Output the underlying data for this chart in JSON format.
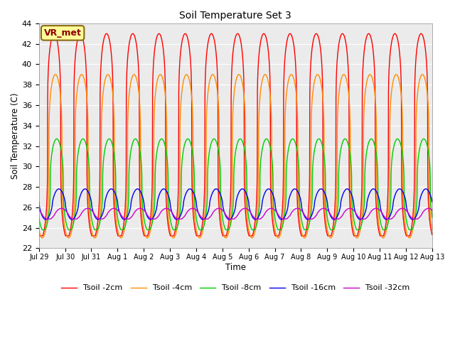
{
  "title": "Soil Temperature Set 3",
  "xlabel": "Time",
  "ylabel": "Soil Temperature (C)",
  "ylim": [
    22,
    44
  ],
  "yticks": [
    22,
    24,
    26,
    28,
    30,
    32,
    34,
    36,
    38,
    40,
    42,
    44
  ],
  "xtick_labels": [
    "Jul 29",
    "Jul 30",
    "Jul 31",
    "Aug 1",
    "Aug 2",
    "Aug 3",
    "Aug 4",
    "Aug 5",
    "Aug 6",
    "Aug 7",
    "Aug 8",
    "Aug 9",
    "Aug 10",
    "Aug 11",
    "Aug 12",
    "Aug 13"
  ],
  "annotation_text": "VR_met",
  "series_names": [
    "Tsoil -2cm",
    "Tsoil -4cm",
    "Tsoil -8cm",
    "Tsoil -16cm",
    "Tsoil -32cm"
  ],
  "series_colors": [
    "#FF0000",
    "#FF8C00",
    "#00CC00",
    "#0000EE",
    "#CC00CC"
  ],
  "series_amp": [
    10.0,
    8.0,
    4.5,
    1.5,
    0.55
  ],
  "series_base": [
    33.0,
    31.0,
    28.2,
    26.3,
    25.35
  ],
  "series_phase": [
    0.0,
    0.05,
    0.1,
    0.18,
    0.28
  ],
  "series_min": [
    23.2,
    22.8,
    23.8,
    24.8,
    24.85
  ],
  "series_sharpness": [
    4.0,
    3.5,
    2.5,
    1.5,
    1.2
  ],
  "bg_color": "#FFFFFF",
  "plot_bg_color": "#EBEBEB",
  "grid_color": "#FFFFFF",
  "n_points": 5000,
  "n_days": 15,
  "figsize": [
    6.4,
    4.8
  ],
  "dpi": 100
}
